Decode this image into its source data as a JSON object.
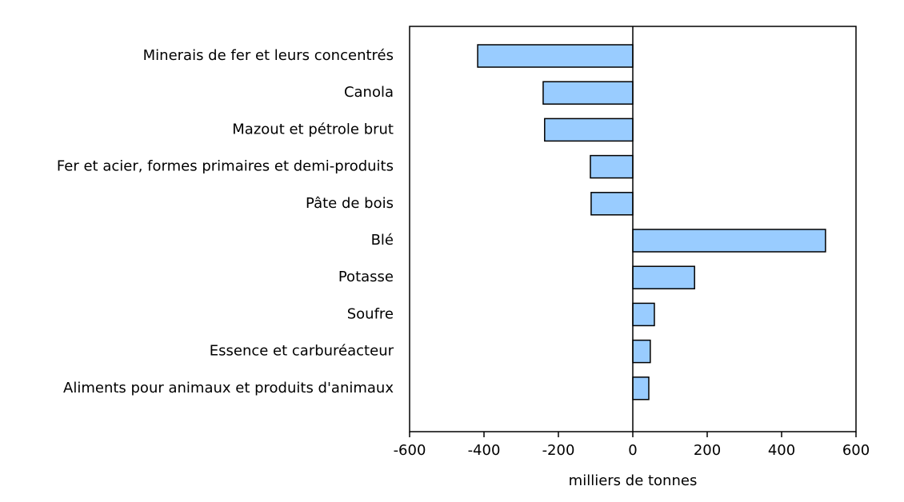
{
  "chart_data": {
    "type": "hbar",
    "categories": [
      "Minerais de fer et leurs concentrés",
      "Canola",
      "Mazout et pétrole brut",
      "Fer et acier, formes primaires et demi-produits",
      "Pâte de bois",
      "Blé",
      "Potasse",
      "Soufre",
      "Essence et carburéacteur",
      "Aliments pour animaux et produits d'animaux"
    ],
    "values": [
      -417,
      -241,
      -237,
      -114,
      -112,
      518,
      166,
      58,
      47,
      43
    ],
    "color": "#99ccff",
    "xlim": [
      -600,
      600
    ],
    "xticks": [
      -600,
      -400,
      -200,
      0,
      200,
      400,
      600
    ],
    "xlabel": "milliers de tonnes"
  }
}
